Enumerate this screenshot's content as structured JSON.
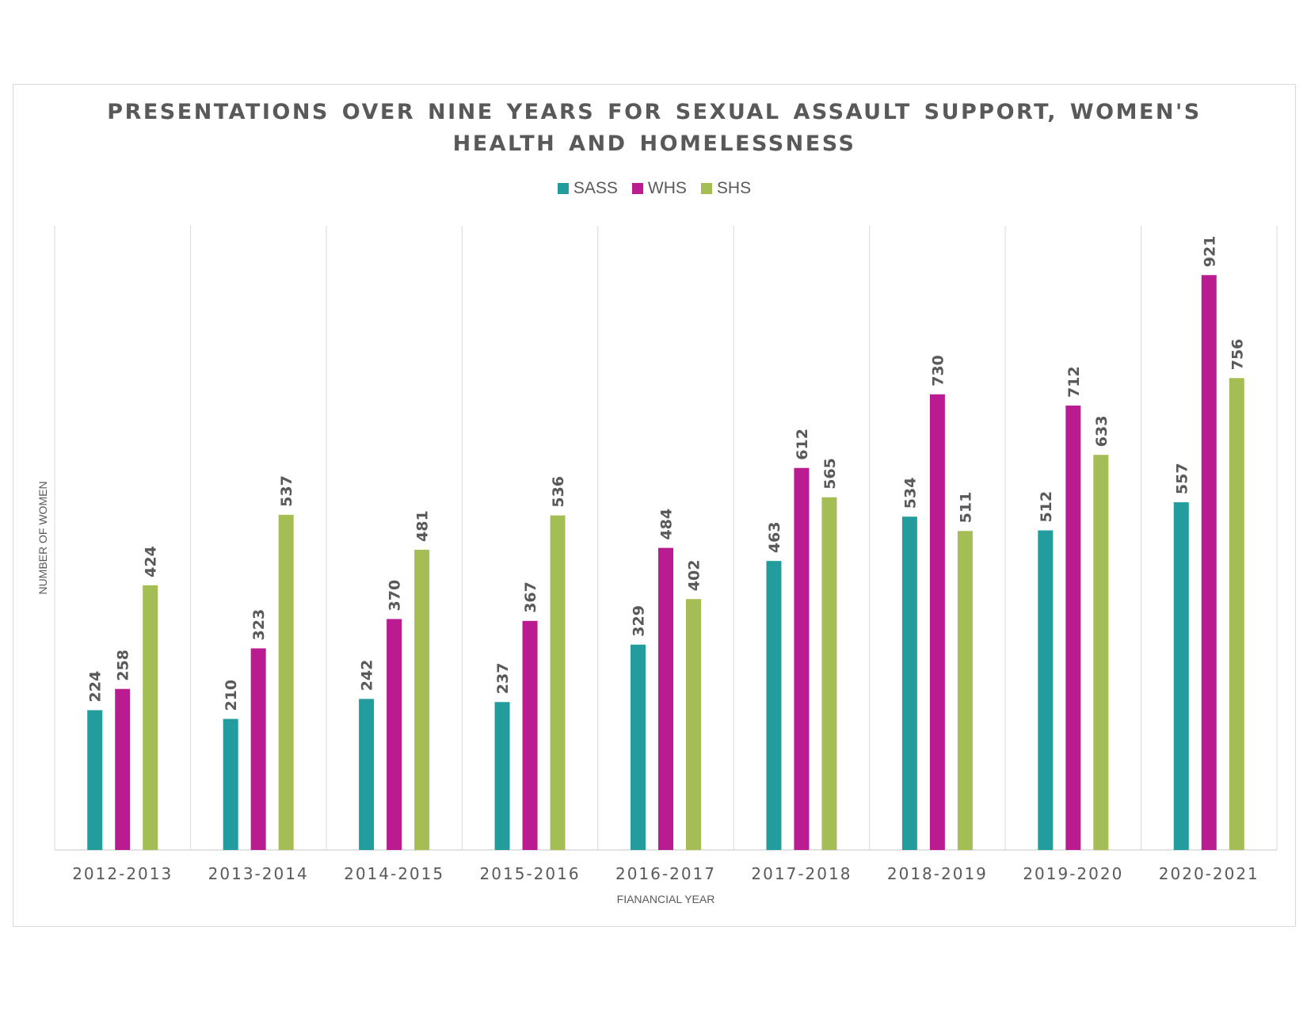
{
  "chart_data": {
    "type": "bar",
    "title": "PRESENTATIONS OVER NINE YEARS FOR SEXUAL ASSAULT SUPPORT, WOMEN'S\nHEALTH AND HOMELESSNESS",
    "xlabel": "FIANANCIAL YEAR",
    "ylabel": "NUMBER OF WOMEN",
    "categories": [
      "2012-2013",
      "2013-2014",
      "2014-2015",
      "2015-2016",
      "2016-2017",
      "2017-2018",
      "2018-2019",
      "2019-2020",
      "2020-2021"
    ],
    "series": [
      {
        "name": "SASS",
        "color": "#229c9c",
        "values": [
          224,
          210,
          242,
          237,
          329,
          463,
          534,
          512,
          557
        ]
      },
      {
        "name": "WHS",
        "color": "#bb1b91",
        "values": [
          258,
          323,
          370,
          367,
          484,
          612,
          730,
          712,
          921
        ]
      },
      {
        "name": "SHS",
        "color": "#a4bd55",
        "values": [
          424,
          537,
          481,
          536,
          402,
          565,
          511,
          633,
          756
        ]
      }
    ],
    "ylim": [
      0,
      1000
    ],
    "grid": "vertical-category-separators",
    "legend": "top-center",
    "data_labels": true
  }
}
